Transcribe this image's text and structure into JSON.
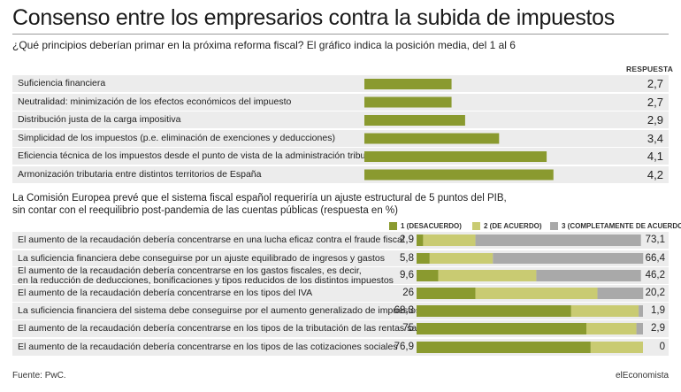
{
  "title": "Consenso entre los empresarios contra la subida de impuestos",
  "subtitle": "¿Qué principios deberían primar en la próxima reforma fiscal? El gráfico indica la posición media, del 1 al 6",
  "intro": {
    "line1": "La Comisión Europea prevé que el sistema fiscal español requeriría un ajuste estructural de 5 puntos del PIB,",
    "line2": "sin contar con el reequilibrio post-pandemia de las cuentas públicas (respuesta en %)"
  },
  "footer": {
    "source": "Fuente: PwC.",
    "brand": "elEconomista"
  },
  "colors": {
    "dark_green": "#8a9a2f",
    "light_green": "#c9cb72",
    "gray": "#a9a9a9",
    "row_bg": "#ececec"
  },
  "chart_data": [
    {
      "type": "bar",
      "orientation": "horizontal",
      "value_header": "RESPUESTA",
      "categories": [
        "Suficiencia financiera",
        "Neutralidad: minimización de los efectos económicos del impuesto",
        "Distribución justa de la carga impositiva",
        "Simplicidad de los impuestos (p.e. eliminación de exenciones y deducciones)",
        "Eficiencia técnica de los impuestos desde el punto de vista de la administración tributaria",
        "Armonización tributaria entre distintos territorios de España"
      ],
      "values": [
        2.7,
        2.7,
        2.9,
        3.4,
        4.1,
        4.2
      ],
      "value_labels": [
        "2,7",
        "2,7",
        "2,9",
        "3,4",
        "4,1",
        "4,2"
      ],
      "xlim": [
        1,
        6
      ]
    },
    {
      "type": "bar",
      "orientation": "horizontal",
      "stacked": true,
      "categories": [
        "El aumento de la recaudación debería concentrarse en una lucha eficaz contra el fraude fiscal",
        "La suficiencia financiera debe conseguirse por un ajuste equilibrado de ingresos y gastos",
        "El aumento de la recaudación debería concentrarse en los gastos fiscales, es decir,\nen la reducción de deducciones, bonificaciones y tipos reducidos de los distintos impuestos",
        "El aumento de la recaudación debería concentrarse en los tipos del IVA",
        "La suficiencia financiera del sistema debe conseguirse por el aumento generalizado de impuestos",
        "El aumento de la recaudación debería concentrarse en los tipos de la tributación de las rentas salariales",
        "El aumento de la recaudación debería concentrarse en los tipos de las cotizaciones sociales"
      ],
      "series": [
        {
          "name": "1 (DESACUERDO)",
          "color": "#8a9a2f",
          "values": [
            2.9,
            5.8,
            9.6,
            26,
            68.3,
            75,
            76.9
          ],
          "labels": [
            "2,9",
            "5,8",
            "9,6",
            "26",
            "68,3",
            "75",
            "76,9"
          ]
        },
        {
          "name": "2 (DE ACUERDO)",
          "color": "#c9cb72",
          "values": [
            23.1,
            27.9,
            43.3,
            53.9,
            29.8,
            22.1,
            23.1
          ],
          "labels": [
            "23,1",
            "27,9",
            "43,3",
            "53,9",
            "29,8",
            "22,1",
            "23,1"
          ]
        },
        {
          "name": "3 (COMPLETAMENTE DE ACUERDO)",
          "color": "#a9a9a9",
          "values": [
            73.1,
            66.4,
            46.2,
            20.2,
            1.9,
            2.9,
            0
          ],
          "labels": [
            "73,1",
            "66,4",
            "46,2",
            "20,2",
            "1,9",
            "2,9",
            "0"
          ]
        }
      ],
      "xlim": [
        0,
        100
      ]
    }
  ]
}
